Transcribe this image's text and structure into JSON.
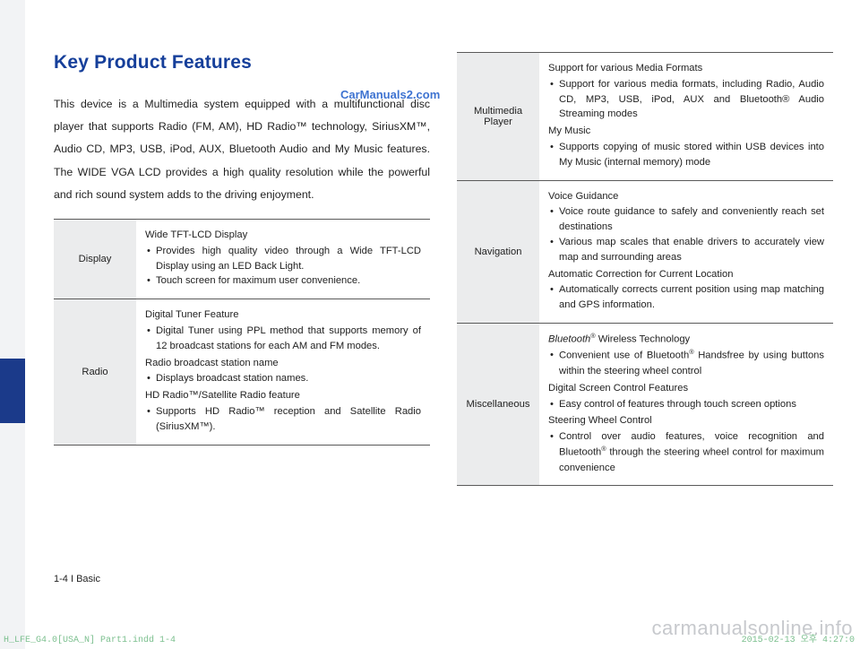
{
  "colors": {
    "heading": "#163f9a",
    "sidebar_bg": "#f2f3f5",
    "side_accent": "#1b3a8a",
    "text": "#222222",
    "row_label_bg": "#ebeced",
    "rule": "#5a5a5a",
    "watermark_blue": "#3e73d1",
    "watermark_gray": "#c7c9cd",
    "print_green": "#7bbf8e"
  },
  "typography": {
    "heading_fontsize": 21,
    "body_fontsize": 12.3,
    "table_fontsize": 11.2,
    "intro_lineheight": 2.05
  },
  "heading": "Key Product Features",
  "intro": "This device is a Multimedia system equipped with a multifunctional disc player that supports Radio (FM, AM), HD Radio™ technology, SiriusXM™, Audio CD, MP3, USB, iPod, AUX, Bluetooth Audio and My Music features. The WIDE VGA LCD provides a high quality resolution while the powerful and rich sound system adds to the driving enjoyment.",
  "left_table": [
    {
      "label": "Display",
      "groups": [
        {
          "title": "Wide TFT-LCD Display",
          "bullets": [
            "Provides high quality video through a Wide TFT-LCD Display using an LED Back Light.",
            "Touch screen for maximum user convenience."
          ]
        }
      ]
    },
    {
      "label": "Radio",
      "groups": [
        {
          "title": "Digital Tuner Feature",
          "bullets": [
            "Digital Tuner using PPL method that supports memory of 12 broadcast stations for each AM and FM modes."
          ]
        },
        {
          "title": "Radio broadcast station name",
          "bullets": [
            "Displays broadcast station names."
          ]
        },
        {
          "title": "HD Radio™/Satellite Radio feature",
          "bullets": [
            "Supports HD Radio™ reception and Satellite Radio (SiriusXM™)."
          ]
        }
      ]
    }
  ],
  "right_table": [
    {
      "label": "Multimedia Player",
      "groups": [
        {
          "title": "Support for various Media Formats",
          "bullets": [
            "Support for various media formats, including Radio, Audio CD, MP3, USB, iPod, AUX and Bluetooth® Audio Streaming modes"
          ]
        },
        {
          "title": "My Music",
          "bullets": [
            "Supports copying of music stored within USB devices into My Music (internal memory) mode"
          ]
        }
      ]
    },
    {
      "label": "Navigation",
      "groups": [
        {
          "title": "Voice Guidance",
          "bullets": [
            "Voice route guidance to safely and conveniently reach set destinations",
            "Various map scales that enable drivers to accurately view map and surrounding areas"
          ]
        },
        {
          "title": "Automatic Correction for Current Location",
          "bullets": [
            "Automatically corrects current position using map matching and GPS information."
          ]
        }
      ]
    },
    {
      "label": "Miscellaneous",
      "groups": [
        {
          "title_html": "<i>Bluetooth</i><sup>®</sup> Wireless Technology",
          "bullets_html": [
            "Convenient use of Bluetooth<sup>®</sup> Handsfree by using buttons within the steering wheel control"
          ]
        },
        {
          "title": "Digital Screen Control Features",
          "bullets": [
            "Easy control of features through touch screen options"
          ]
        },
        {
          "title": "Steering Wheel Control",
          "bullets_html": [
            "Control over audio features, voice recognition and Bluetooth<sup>®</sup> through the steering wheel control for maximum convenience"
          ]
        }
      ]
    }
  ],
  "footer_page": "1-4 I Basic",
  "watermark_blue": "CarManuals2.com",
  "watermark_gray": "carmanualsonline.info",
  "print_left": "H_LFE_G4.0[USA_N] Part1.indd   1-4",
  "print_right": "2015-02-13   오후 4:27:0"
}
